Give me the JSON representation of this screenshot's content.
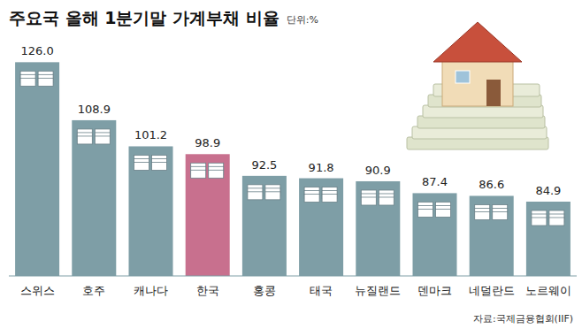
{
  "chart_data": {
    "type": "bar",
    "title": "주요국 올해 1분기말 가계부채 비율",
    "subtitle": "단위:%",
    "source": "자료:국제금융협회(IIF)",
    "categories": [
      "스위스",
      "호주",
      "캐나다",
      "한국",
      "홍콩",
      "태국",
      "뉴질랜드",
      "덴마크",
      "네덜란드",
      "노르웨이"
    ],
    "values": [
      126.0,
      108.9,
      101.2,
      98.9,
      92.5,
      91.8,
      90.9,
      87.4,
      86.6,
      84.9
    ],
    "value_labels": [
      "126.0",
      "108.9",
      "101.2",
      "98.9",
      "92.5",
      "91.8",
      "90.9",
      "87.4",
      "86.6",
      "84.9"
    ],
    "colors": [
      "#7e9ea6",
      "#7e9ea6",
      "#7e9ea6",
      "#c8708e",
      "#7e9ea6",
      "#7e9ea6",
      "#7e9ea6",
      "#7e9ea6",
      "#7e9ea6",
      "#7e9ea6"
    ],
    "ylim": [
      63,
      130
    ],
    "data_labels": true,
    "tick_labels": "x",
    "grid": false
  }
}
